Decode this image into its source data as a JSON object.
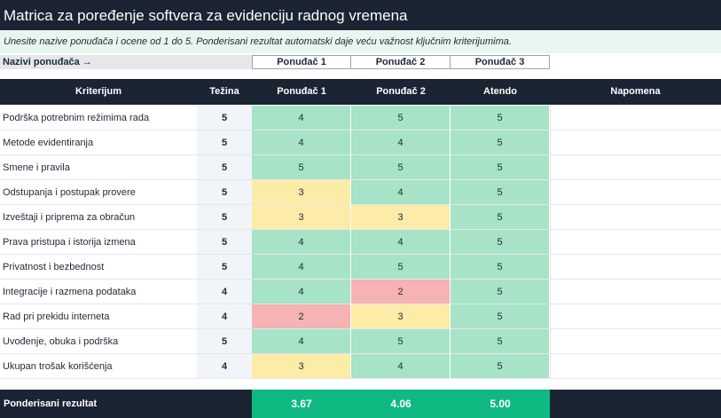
{
  "title": "Matrica za poređenje softvera za evidenciju radnog vremena",
  "subtitle": "Unesite nazive ponuđača i ocene od 1 do 5. Ponderisani rezultat automatski daje veću važnost ključnim kriterijumima.",
  "vendor_names": {
    "label": "Nazivi ponuđača →",
    "names": [
      "Ponuđač 1",
      "Ponuđač 2",
      "Ponuđač 3"
    ]
  },
  "headers": {
    "criterion": "Kriterijum",
    "weight": "Težina",
    "v1": "Ponuđač 1",
    "v2": "Ponuđač 2",
    "v3": "Atendo",
    "note": "Napomena"
  },
  "colors": {
    "score_5": "#a7e3c6",
    "score_4": "#a7e3c6",
    "score_3": "#fdeba8",
    "score_2": "#f6b3b3",
    "header_bg": "#1b2433",
    "result_green": "#10b981"
  },
  "rows": [
    {
      "criterion": "Podrška potrebnim režimima rada",
      "weight": "5",
      "s1": "4",
      "s2": "5",
      "s3": "5",
      "note": ""
    },
    {
      "criterion": "Metode evidentiranja",
      "weight": "5",
      "s1": "4",
      "s2": "4",
      "s3": "5",
      "note": ""
    },
    {
      "criterion": "Smene i pravila",
      "weight": "5",
      "s1": "5",
      "s2": "5",
      "s3": "5",
      "note": ""
    },
    {
      "criterion": "Odstupanja i postupak provere",
      "weight": "5",
      "s1": "3",
      "s2": "4",
      "s3": "5",
      "note": ""
    },
    {
      "criterion": "Izveštaji i priprema za obračun",
      "weight": "5",
      "s1": "3",
      "s2": "3",
      "s3": "5",
      "note": ""
    },
    {
      "criterion": "Prava pristupa i istorija izmena",
      "weight": "5",
      "s1": "4",
      "s2": "4",
      "s3": "5",
      "note": ""
    },
    {
      "criterion": "Privatnost i bezbednost",
      "weight": "5",
      "s1": "4",
      "s2": "5",
      "s3": "5",
      "note": ""
    },
    {
      "criterion": "Integracije i razmena podataka",
      "weight": "4",
      "s1": "4",
      "s2": "2",
      "s3": "5",
      "note": ""
    },
    {
      "criterion": "Rad pri prekidu interneta",
      "weight": "4",
      "s1": "2",
      "s2": "3",
      "s3": "5",
      "note": ""
    },
    {
      "criterion": "Uvođenje, obuka i podrška",
      "weight": "5",
      "s1": "4",
      "s2": "5",
      "s3": "5",
      "note": ""
    },
    {
      "criterion": "Ukupan trošak korišćenja",
      "weight": "4",
      "s1": "3",
      "s2": "4",
      "s3": "5",
      "note": ""
    }
  ],
  "footer": {
    "label": "Ponderisani rezultat",
    "r1": "3.67",
    "r2": "4.06",
    "r3": "5.00"
  }
}
